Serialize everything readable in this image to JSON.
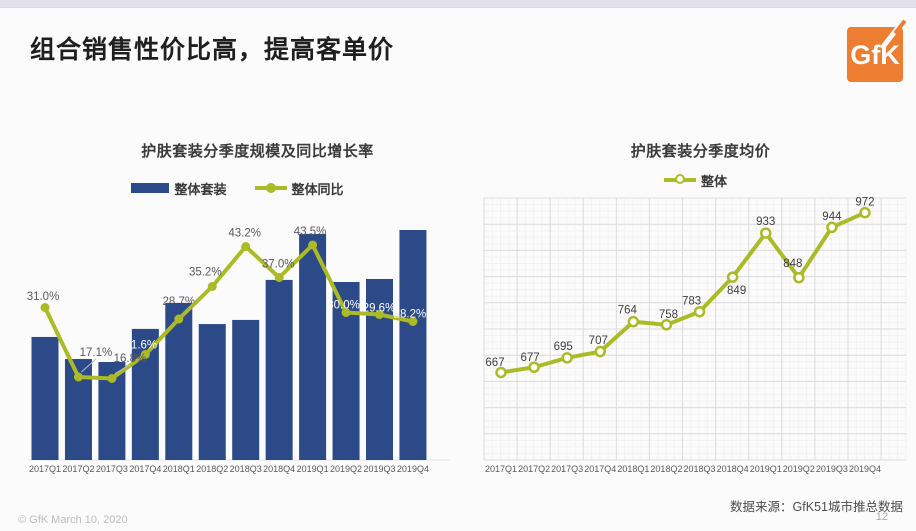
{
  "header": {
    "title": "组合销售性价比高，提高客单价"
  },
  "logo": {
    "text": "GfK",
    "color": "#ED7D31"
  },
  "footer": {
    "copyright": "© GfK March 10, 2020",
    "source": "数据来源：GfK51城市推总数据",
    "page": "12"
  },
  "chart_data": [
    {
      "type": "bar",
      "title": "护肤套装分季度规模及同比增长率",
      "categories": [
        "2017Q1",
        "2017Q2",
        "2017Q3",
        "2017Q4",
        "2018Q1",
        "2018Q2",
        "2018Q3",
        "2018Q4",
        "2019Q1",
        "2019Q2",
        "2019Q3",
        "2019Q4"
      ],
      "bar": {
        "name": "整体套装",
        "color": "#2B4A87",
        "note": "bar values are not labeled in the chart; heights are relative, % of tallest bar (2019Q4)",
        "relative_heights": [
          53.5,
          43.9,
          42.6,
          57.0,
          68.3,
          59.1,
          60.9,
          78.3,
          98.3,
          77.4,
          78.7,
          100
        ]
      },
      "line": {
        "name": "整体同比",
        "color": "#ABBB26",
        "values_pct": [
          31.0,
          17.1,
          16.8,
          21.6,
          28.7,
          35.2,
          43.2,
          37.0,
          43.5,
          30.0,
          29.6,
          28.2
        ]
      },
      "ylim_line_pct": [
        0,
        50
      ],
      "legend_position": "top",
      "grid": false
    },
    {
      "type": "line",
      "title": "护肤套装分季度均价",
      "categories": [
        "2017Q1",
        "2017Q2",
        "2017Q3",
        "2017Q4",
        "2018Q1",
        "2018Q2",
        "2018Q3",
        "2018Q4",
        "2019Q1",
        "2019Q2",
        "2019Q3",
        "2019Q4"
      ],
      "series": [
        {
          "name": "整体",
          "color": "#ABBB26",
          "marker": "open-circle",
          "values": [
            667,
            677,
            695,
            707,
            764,
            758,
            783,
            849,
            933,
            848,
            944,
            972
          ]
        }
      ],
      "ylim": [
        500,
        1000
      ],
      "legend_position": "top",
      "grid": true
    }
  ]
}
